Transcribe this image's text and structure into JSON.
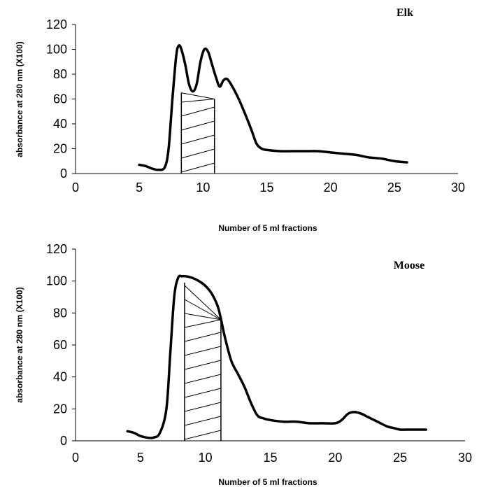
{
  "chart_data": [
    {
      "type": "line",
      "title": "Elk",
      "xlabel": "Number of 5 ml fractions",
      "ylabel": "absorbance at 280 nm (X100)",
      "xlim": [
        0,
        30
      ],
      "ylim": [
        0,
        120
      ],
      "xticks": [
        "0",
        "5",
        "10",
        "15",
        "20",
        "25",
        "30"
      ],
      "yticks": [
        "0",
        "20",
        "40",
        "60",
        "80",
        "100",
        "120"
      ],
      "grid": false,
      "series": [
        {
          "x": [
            5,
            5.5,
            6,
            6.5,
            7,
            7.3,
            7.6,
            7.9,
            8.1,
            8.3,
            8.6,
            8.9,
            9.2,
            9.5,
            9.8,
            10.1,
            10.4,
            10.7,
            11.0,
            11.3,
            11.6,
            11.9,
            12.3,
            12.8,
            13.3,
            13.8,
            14.2,
            14.6,
            15,
            16,
            17,
            18,
            19,
            20,
            21,
            22,
            23,
            24,
            25,
            26
          ],
          "y": [
            7,
            6,
            4,
            3,
            5,
            20,
            60,
            95,
            103,
            100,
            88,
            72,
            66,
            72,
            90,
            100,
            98,
            88,
            78,
            70,
            75,
            76,
            70,
            60,
            48,
            35,
            24,
            20,
            19,
            18,
            18,
            18,
            18,
            17,
            16,
            15,
            13,
            12,
            10,
            9
          ]
        }
      ],
      "shaded_region": {
        "x": [
          8.3,
          10.9
        ]
      }
    },
    {
      "type": "line",
      "title": "Moose",
      "xlabel": "Number of 5 ml fractions",
      "ylabel": "absorbance at 280 nm (X100)",
      "xlim": [
        0,
        30
      ],
      "ylim": [
        0,
        120
      ],
      "xticks": [
        "0",
        "5",
        "10",
        "15",
        "20",
        "25",
        "30"
      ],
      "yticks": [
        "0",
        "20",
        "40",
        "60",
        "80",
        "100",
        "120"
      ],
      "grid": false,
      "series": [
        {
          "x": [
            4,
            4.5,
            5,
            5.5,
            6,
            6.5,
            7,
            7.3,
            7.6,
            7.9,
            8.2,
            8.5,
            9,
            9.5,
            10,
            10.5,
            11,
            11.5,
            12,
            12.5,
            13,
            13.5,
            14,
            14.5,
            15,
            16,
            17,
            18,
            19,
            20,
            20.5,
            21,
            21.5,
            22,
            22.5,
            23,
            23.5,
            24,
            24.5,
            25,
            25.5,
            26,
            27
          ],
          "y": [
            6,
            5,
            3,
            2,
            2,
            5,
            20,
            55,
            90,
            102,
            103,
            103,
            102,
            100,
            97,
            92,
            83,
            65,
            50,
            42,
            34,
            24,
            16,
            14,
            13,
            12,
            12,
            11,
            11,
            11,
            13,
            17,
            18,
            17,
            15,
            13,
            11,
            9,
            8,
            7,
            7,
            7,
            7
          ]
        }
      ],
      "shaded_region": {
        "x": [
          8.4,
          11.2
        ]
      }
    }
  ]
}
